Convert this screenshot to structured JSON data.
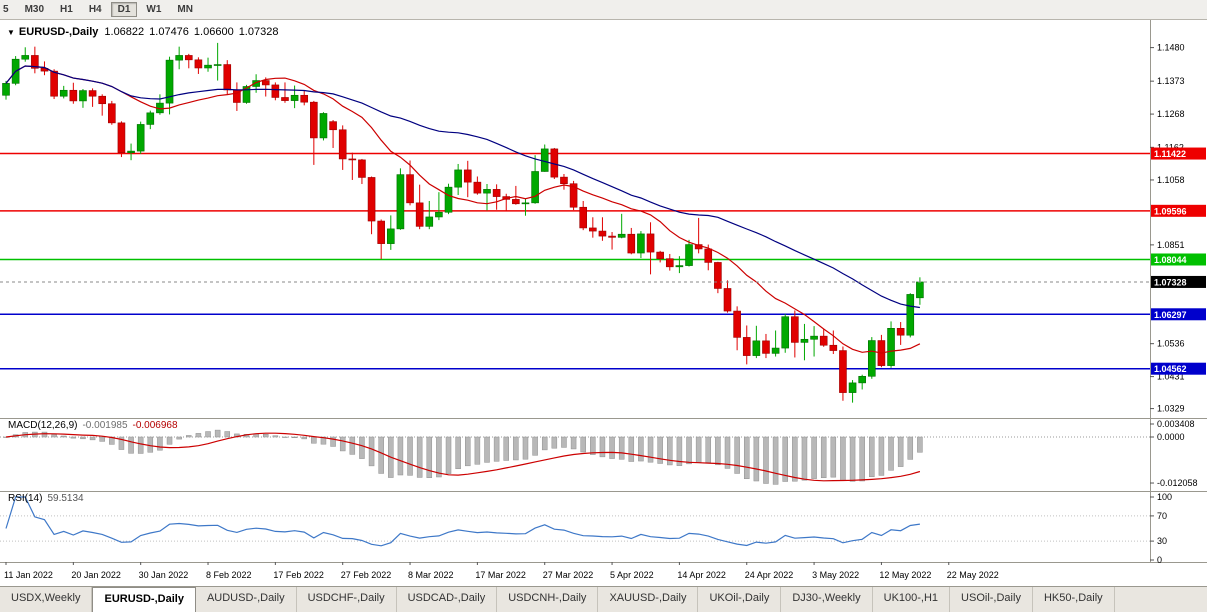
{
  "toolbar": {
    "timeframes": [
      {
        "label": "5",
        "active": false
      },
      {
        "label": "M30",
        "active": false
      },
      {
        "label": "H1",
        "active": false
      },
      {
        "label": "H4",
        "active": false
      },
      {
        "label": "D1",
        "active": true
      },
      {
        "label": "W1",
        "active": false
      },
      {
        "label": "MN",
        "active": false
      }
    ]
  },
  "chart": {
    "header": {
      "symbol": "EURUSD-,Daily",
      "open": "1.06822",
      "high": "1.07476",
      "low": "1.06600",
      "close": "1.07328"
    }
  },
  "chart_data": {
    "type": "candlestick",
    "title": "EURUSD-,Daily",
    "ylim": [
      1.0299,
      1.1568
    ],
    "y_ticks": [
      1.148,
      1.1373,
      1.1268,
      1.1162,
      1.1058,
      1.0851,
      1.0536,
      1.0431,
      1.0329
    ],
    "colors": {
      "candle_up": "#00a800",
      "candle_up_edge": "#006e00",
      "candle_down": "#e00000",
      "candle_down_edge": "#9c0000"
    },
    "candles": [
      [
        1.1328,
        1.1374,
        1.1314,
        1.1366
      ],
      [
        1.1366,
        1.1453,
        1.136,
        1.1443
      ],
      [
        1.1443,
        1.1481,
        1.1435,
        1.1455
      ],
      [
        1.1455,
        1.1483,
        1.1398,
        1.1414
      ],
      [
        1.1414,
        1.1436,
        1.1392,
        1.1405
      ],
      [
        1.1405,
        1.1411,
        1.1316,
        1.1325
      ],
      [
        1.1325,
        1.1358,
        1.1318,
        1.1344
      ],
      [
        1.1344,
        1.1368,
        1.1301,
        1.131
      ],
      [
        1.131,
        1.1348,
        1.1288,
        1.1343
      ],
      [
        1.1343,
        1.135,
        1.1291,
        1.1325
      ],
      [
        1.1325,
        1.1331,
        1.1263,
        1.1301
      ],
      [
        1.1301,
        1.131,
        1.1234,
        1.124
      ],
      [
        1.124,
        1.1245,
        1.1131,
        1.1145
      ],
      [
        1.1145,
        1.1174,
        1.1121,
        1.115
      ],
      [
        1.115,
        1.1244,
        1.1141,
        1.1235
      ],
      [
        1.1235,
        1.1279,
        1.122,
        1.1272
      ],
      [
        1.1272,
        1.1331,
        1.1266,
        1.1303
      ],
      [
        1.1303,
        1.1451,
        1.1267,
        1.144
      ],
      [
        1.144,
        1.1483,
        1.1411,
        1.1455
      ],
      [
        1.1455,
        1.146,
        1.1414,
        1.1441
      ],
      [
        1.1441,
        1.1449,
        1.1396,
        1.1415
      ],
      [
        1.1415,
        1.1448,
        1.1403,
        1.1424
      ],
      [
        1.1424,
        1.1495,
        1.1375,
        1.1426
      ],
      [
        1.1426,
        1.144,
        1.133,
        1.1345
      ],
      [
        1.1345,
        1.1369,
        1.1278,
        1.1305
      ],
      [
        1.1305,
        1.1361,
        1.1301,
        1.1356
      ],
      [
        1.1356,
        1.1395,
        1.1336,
        1.1375
      ],
      [
        1.1375,
        1.1385,
        1.1324,
        1.1361
      ],
      [
        1.1361,
        1.1369,
        1.1312,
        1.1321
      ],
      [
        1.1321,
        1.1369,
        1.1304,
        1.1311
      ],
      [
        1.1311,
        1.1359,
        1.1287,
        1.1328
      ],
      [
        1.1328,
        1.1343,
        1.1296,
        1.1306
      ],
      [
        1.1306,
        1.131,
        1.1106,
        1.1192
      ],
      [
        1.1192,
        1.1274,
        1.1184,
        1.127
      ],
      [
        1.1244,
        1.1249,
        1.116,
        1.1218
      ],
      [
        1.1218,
        1.1232,
        1.109,
        1.1125
      ],
      [
        1.1125,
        1.1145,
        1.1058,
        1.1122
      ],
      [
        1.1122,
        1.1125,
        1.1045,
        1.1066
      ],
      [
        1.1066,
        1.1069,
        1.0885,
        1.0927
      ],
      [
        1.0927,
        1.0932,
        1.0806,
        1.0855
      ],
      [
        1.0855,
        1.0945,
        1.0835,
        1.0902
      ],
      [
        1.0902,
        1.1095,
        1.0899,
        1.1075
      ],
      [
        1.1075,
        1.112,
        1.0977,
        1.0985
      ],
      [
        1.0985,
        1.1043,
        1.0901,
        1.091
      ],
      [
        1.091,
        1.0991,
        1.0901,
        1.094
      ],
      [
        1.094,
        1.1019,
        1.093,
        1.0955
      ],
      [
        1.0955,
        1.1046,
        1.0949,
        1.1035
      ],
      [
        1.1035,
        1.1109,
        1.101,
        1.109
      ],
      [
        1.109,
        1.1119,
        1.1003,
        1.1051
      ],
      [
        1.1051,
        1.1069,
        1.1011,
        1.1016
      ],
      [
        1.1016,
        1.1045,
        1.0961,
        1.1028
      ],
      [
        1.1028,
        1.1044,
        1.0963,
        1.1005
      ],
      [
        1.1005,
        1.1014,
        1.096,
        1.0996
      ],
      [
        1.0996,
        1.1039,
        1.0979,
        1.0982
      ],
      [
        1.0982,
        1.0999,
        1.0944,
        1.0985
      ],
      [
        1.0985,
        1.1137,
        1.0982,
        1.1085
      ],
      [
        1.1085,
        1.1171,
        1.1084,
        1.1157
      ],
      [
        1.1157,
        1.116,
        1.1061,
        1.1067
      ],
      [
        1.1067,
        1.1077,
        1.1027,
        1.1046
      ],
      [
        1.1046,
        1.1055,
        1.0962,
        1.0971
      ],
      [
        1.0971,
        1.0991,
        1.0898,
        1.0905
      ],
      [
        1.0905,
        1.0939,
        1.0874,
        1.0895
      ],
      [
        1.0895,
        1.0939,
        1.0864,
        1.0879
      ],
      [
        1.0879,
        1.0892,
        1.0836,
        1.0875
      ],
      [
        1.0875,
        1.095,
        1.0872,
        1.0885
      ],
      [
        1.0885,
        1.0905,
        1.0821,
        1.0825
      ],
      [
        1.0825,
        1.0895,
        1.0809,
        1.0886
      ],
      [
        1.0886,
        1.0923,
        1.0757,
        1.0828
      ],
      [
        1.0828,
        1.0832,
        1.0795,
        1.0807
      ],
      [
        1.0807,
        1.0822,
        1.0769,
        1.0781
      ],
      [
        1.0781,
        1.0815,
        1.0761,
        1.0785
      ],
      [
        1.0785,
        1.0867,
        1.0782,
        1.0852
      ],
      [
        1.0852,
        1.0937,
        1.0824,
        1.0838
      ],
      [
        1.0838,
        1.0852,
        1.077,
        1.0795
      ],
      [
        1.0795,
        1.0797,
        1.0697,
        1.0712
      ],
      [
        1.0712,
        1.0738,
        1.0635,
        1.064
      ],
      [
        1.064,
        1.0655,
        1.0515,
        1.0556
      ],
      [
        1.0556,
        1.0594,
        1.047,
        1.0498
      ],
      [
        1.0498,
        1.0593,
        1.049,
        1.0545
      ],
      [
        1.0545,
        1.0567,
        1.049,
        1.0505
      ],
      [
        1.0505,
        1.0578,
        1.0495,
        1.0522
      ],
      [
        1.0522,
        1.063,
        1.0507,
        1.0622
      ],
      [
        1.0622,
        1.0642,
        1.0492,
        1.054
      ],
      [
        1.054,
        1.0599,
        1.0483,
        1.055
      ],
      [
        1.055,
        1.0592,
        1.0495,
        1.056
      ],
      [
        1.056,
        1.0584,
        1.0526,
        1.0531
      ],
      [
        1.0531,
        1.0578,
        1.0503,
        1.0514
      ],
      [
        1.0514,
        1.0527,
        1.0354,
        1.038
      ],
      [
        1.038,
        1.042,
        1.0348,
        1.0411
      ],
      [
        1.0411,
        1.0437,
        1.039,
        1.0432
      ],
      [
        1.0432,
        1.0557,
        1.0424,
        1.0546
      ],
      [
        1.0546,
        1.0564,
        1.0461,
        1.0466
      ],
      [
        1.0466,
        1.0607,
        1.0459,
        1.0585
      ],
      [
        1.0585,
        1.0605,
        1.0532,
        1.0563
      ],
      [
        1.0563,
        1.0697,
        1.0556,
        1.0693
      ],
      [
        1.06822,
        1.07476,
        1.066,
        1.07328
      ]
    ],
    "x_labels": [
      {
        "index": 0,
        "label": "11 Jan 2022"
      },
      {
        "index": 7,
        "label": "20 Jan 2022"
      },
      {
        "index": 14,
        "label": "30 Jan 2022"
      },
      {
        "index": 21,
        "label": "8 Feb 2022"
      },
      {
        "index": 28,
        "label": "17 Feb 2022"
      },
      {
        "index": 35,
        "label": "27 Feb 2022"
      },
      {
        "index": 42,
        "label": "8 Mar 2022"
      },
      {
        "index": 49,
        "label": "17 Mar 2022"
      },
      {
        "index": 56,
        "label": "27 Mar 2022"
      },
      {
        "index": 63,
        "label": "5 Apr 2022"
      },
      {
        "index": 70,
        "label": "14 Apr 2022"
      },
      {
        "index": 77,
        "label": "24 Apr 2022"
      },
      {
        "index": 84,
        "label": "3 May 2022"
      },
      {
        "index": 91,
        "label": "12 May 2022"
      },
      {
        "index": 98,
        "label": "22 May 2022"
      }
    ],
    "hlines": [
      {
        "price": 1.11422,
        "label": "1.11422",
        "color": "#ee0000"
      },
      {
        "price": 1.09596,
        "label": "1.09596",
        "color": "#ee0000"
      },
      {
        "price": 1.08044,
        "label": "1.08044",
        "color": "#00c000"
      },
      {
        "price": 1.06297,
        "label": "1.06297",
        "color": "#0000cc"
      },
      {
        "price": 1.04562,
        "label": "1.04562",
        "color": "#0000cc"
      }
    ],
    "current_price": {
      "value": 1.07328,
      "label": "1.07328",
      "tag_color": "#000000"
    },
    "moving_averages": [
      {
        "name": "ma-fast",
        "period": 13,
        "color": "#cc0000"
      },
      {
        "name": "ma-slow",
        "period": 34,
        "color": "#000080"
      }
    ],
    "indicators": [
      {
        "name": "MACD",
        "title": "MACD(12,26,9)",
        "value_main": "-0.001985",
        "value_signal": "-0.006968",
        "params": {
          "fast": 12,
          "slow": 26,
          "signal": 9
        },
        "ylim": [
          -0.014148,
          0.004716
        ],
        "y_ticks": [
          {
            "value": 0.003408,
            "label": "0.003408"
          },
          {
            "value": 0,
            "label": "0.0000"
          },
          {
            "value": -0.012058,
            "label": "-0.012058"
          }
        ],
        "histogram_color": "#b8b8b8",
        "histogram_edge": "#8f8f8f",
        "signal_color": "#cc0000"
      },
      {
        "name": "RSI",
        "title": "RSI(14)",
        "value": "59.5134",
        "period": 14,
        "ylim": [
          0,
          100
        ],
        "y_ticks": [
          {
            "value": 100,
            "label": "100"
          },
          {
            "value": 70,
            "label": "70"
          },
          {
            "value": 30,
            "label": "30"
          },
          {
            "value": 0,
            "label": "0"
          }
        ],
        "levels": [
          70,
          30
        ],
        "line_color": "#3e78c8"
      }
    ]
  },
  "tabs": [
    {
      "label": "USDX,Weekly",
      "active": false
    },
    {
      "label": "EURUSD-,Daily",
      "active": true
    },
    {
      "label": "AUDUSD-,Daily",
      "active": false
    },
    {
      "label": "USDCHF-,Daily",
      "active": false
    },
    {
      "label": "USDCAD-,Daily",
      "active": false
    },
    {
      "label": "USDCNH-,Daily",
      "active": false
    },
    {
      "label": "XAUUSD-,Daily",
      "active": false
    },
    {
      "label": "UKOil-,Daily",
      "active": false
    },
    {
      "label": "DJ30-,Weekly",
      "active": false
    },
    {
      "label": "UK100-,H1",
      "active": false
    },
    {
      "label": "USOil-,Daily",
      "active": false
    },
    {
      "label": "HK50-,Daily",
      "active": false
    }
  ]
}
